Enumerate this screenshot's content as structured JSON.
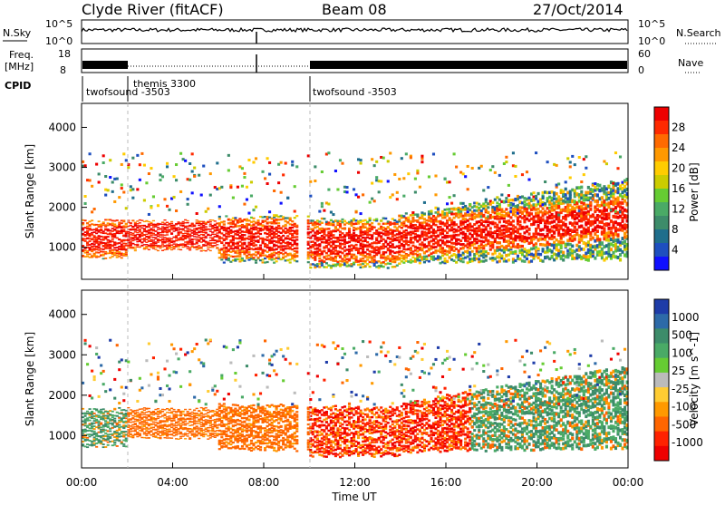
{
  "header": {
    "station": "Clyde River (fitACF)",
    "beam": "Beam 08",
    "date": "27/Oct/2014"
  },
  "side_labels": {
    "nsky": "N.Sky",
    "nsearch": "N.Search",
    "freq_line1": "Freq.",
    "freq_line2": "[MHz]",
    "nave": "Nave",
    "cpid": "CPID",
    "nsky_top": "10^5",
    "nsky_bottom": "10^0",
    "nsearch_top": "10^5",
    "nsearch_bottom": "10^0",
    "freq_top": "18",
    "freq_bottom": "8",
    "nave_top": "60",
    "nave_bottom": "0"
  },
  "cpid_segments": [
    {
      "label": "twofsound -3503",
      "start_hour": 0
    },
    {
      "label": "themis 3300",
      "start_hour": 2
    },
    {
      "label": "twofsound -3503",
      "start_hour": 10
    }
  ],
  "chart_data": [
    {
      "type": "heatmap",
      "panel": "power",
      "ylabel": "Slant Range [km]",
      "xlabel": "Time UT",
      "xlim": [
        0,
        24
      ],
      "ylim": [
        200,
        4600
      ],
      "xticks": [
        "00:00",
        "04:00",
        "08:00",
        "12:00",
        "16:00",
        "20:00",
        "00:00"
      ],
      "yticks": [
        1000,
        2000,
        3000,
        4000
      ],
      "colorbar": {
        "label": "Power [dB]",
        "ticks": [
          "28",
          "24",
          "20",
          "16",
          "12",
          "8",
          "4"
        ],
        "colors": [
          "#ee0000",
          "#ff2a00",
          "#ff6a00",
          "#ff9900",
          "#ffcc00",
          "#cccc00",
          "#66cc33",
          "#4aaa66",
          "#3d8c6a",
          "#1f6e8c",
          "#1e4fbf",
          "#1010ff"
        ]
      }
    },
    {
      "type": "heatmap",
      "panel": "velocity",
      "ylabel": "Slant Range [km]",
      "xlabel": "Time UT",
      "xlim": [
        0,
        24
      ],
      "ylim": [
        200,
        4600
      ],
      "xticks": [
        "00:00",
        "04:00",
        "08:00",
        "12:00",
        "16:00",
        "20:00",
        "00:00"
      ],
      "yticks": [
        1000,
        2000,
        3000,
        4000
      ],
      "colorbar": {
        "label": "Velocity [m s^-1]",
        "ticks": [
          "1000",
          "500",
          "100",
          "25",
          "-25",
          "-100",
          "-500",
          "-1000"
        ],
        "colors": [
          "#1e3ca8",
          "#2d6aa8",
          "#3d8c6a",
          "#4aaa66",
          "#66cc33",
          "#bbbbbb",
          "#ffcc33",
          "#ff9900",
          "#ff6600",
          "#ff2200",
          "#ee0000"
        ]
      }
    }
  ]
}
